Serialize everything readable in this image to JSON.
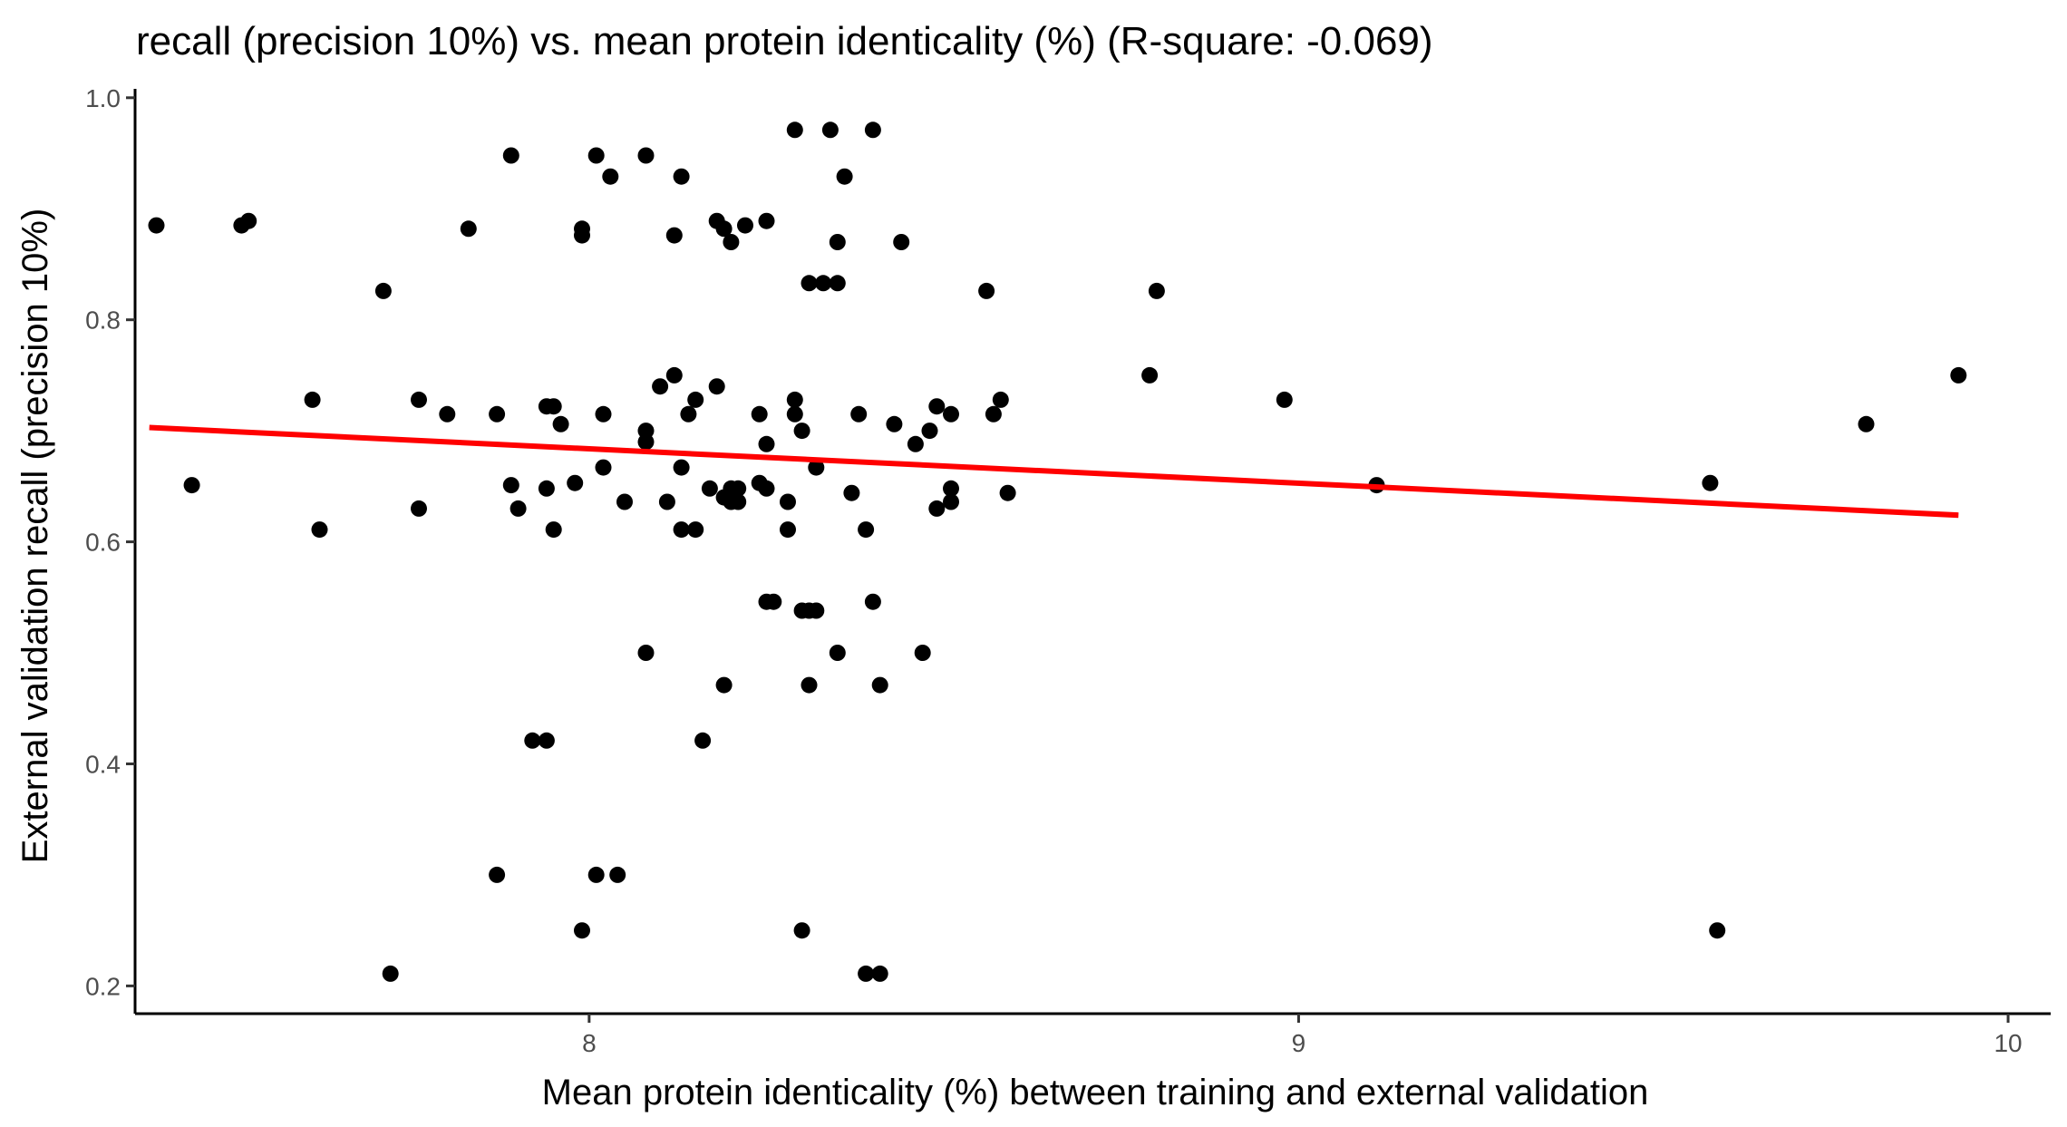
{
  "chart_data": {
    "type": "scatter",
    "title": "recall (precision 10%) vs. mean protein identicality (%) (R-square: -0.069)",
    "xlabel": "Mean protein identicality (%) between training and external validation",
    "ylabel": "External validation recall (precision 10%)",
    "xlim": [
      7.36,
      10.06
    ],
    "ylim": [
      0.175,
      1.008
    ],
    "xticks": [
      "8",
      "9",
      "10"
    ],
    "xtick_values": [
      8,
      9,
      10
    ],
    "yticks": [
      "0.2",
      "0.4",
      "0.6",
      "0.8",
      "1.0"
    ],
    "ytick_values": [
      0.2,
      0.4,
      0.6,
      0.8,
      1.0
    ],
    "grid": false,
    "legend": "none",
    "point_color": "#000000",
    "trend_color": "#ff0000",
    "trendline": {
      "x": [
        7.38,
        9.93
      ],
      "y": [
        0.703,
        0.624
      ]
    },
    "points": [
      {
        "x": 7.39,
        "y": 0.885
      },
      {
        "x": 7.44,
        "y": 0.651
      },
      {
        "x": 7.51,
        "y": 0.885
      },
      {
        "x": 7.52,
        "y": 0.889
      },
      {
        "x": 7.61,
        "y": 0.728
      },
      {
        "x": 7.62,
        "y": 0.611
      },
      {
        "x": 7.71,
        "y": 0.826
      },
      {
        "x": 7.72,
        "y": 0.211
      },
      {
        "x": 7.76,
        "y": 0.728
      },
      {
        "x": 7.76,
        "y": 0.63
      },
      {
        "x": 7.8,
        "y": 0.715
      },
      {
        "x": 7.83,
        "y": 0.882
      },
      {
        "x": 7.87,
        "y": 0.715
      },
      {
        "x": 7.87,
        "y": 0.3
      },
      {
        "x": 7.89,
        "y": 0.948
      },
      {
        "x": 7.89,
        "y": 0.651
      },
      {
        "x": 7.9,
        "y": 0.63
      },
      {
        "x": 7.92,
        "y": 0.421
      },
      {
        "x": 7.94,
        "y": 0.648
      },
      {
        "x": 7.94,
        "y": 0.421
      },
      {
        "x": 7.94,
        "y": 0.722
      },
      {
        "x": 7.95,
        "y": 0.611
      },
      {
        "x": 7.95,
        "y": 0.722
      },
      {
        "x": 7.96,
        "y": 0.706
      },
      {
        "x": 7.98,
        "y": 0.653
      },
      {
        "x": 7.99,
        "y": 0.876
      },
      {
        "x": 7.99,
        "y": 0.882
      },
      {
        "x": 7.99,
        "y": 0.25
      },
      {
        "x": 8.01,
        "y": 0.3
      },
      {
        "x": 8.01,
        "y": 0.948
      },
      {
        "x": 8.02,
        "y": 0.715
      },
      {
        "x": 8.02,
        "y": 0.667
      },
      {
        "x": 8.03,
        "y": 0.929
      },
      {
        "x": 8.04,
        "y": 0.3
      },
      {
        "x": 8.05,
        "y": 0.636
      },
      {
        "x": 8.08,
        "y": 0.948
      },
      {
        "x": 8.08,
        "y": 0.7
      },
      {
        "x": 8.08,
        "y": 0.69
      },
      {
        "x": 8.08,
        "y": 0.5
      },
      {
        "x": 8.1,
        "y": 0.74
      },
      {
        "x": 8.11,
        "y": 0.636
      },
      {
        "x": 8.12,
        "y": 0.75
      },
      {
        "x": 8.12,
        "y": 0.876
      },
      {
        "x": 8.13,
        "y": 0.929
      },
      {
        "x": 8.13,
        "y": 0.667
      },
      {
        "x": 8.13,
        "y": 0.611
      },
      {
        "x": 8.14,
        "y": 0.715
      },
      {
        "x": 8.15,
        "y": 0.728
      },
      {
        "x": 8.15,
        "y": 0.611
      },
      {
        "x": 8.16,
        "y": 0.421
      },
      {
        "x": 8.17,
        "y": 0.648
      },
      {
        "x": 8.18,
        "y": 0.74
      },
      {
        "x": 8.18,
        "y": 0.889
      },
      {
        "x": 8.19,
        "y": 0.882
      },
      {
        "x": 8.19,
        "y": 0.64
      },
      {
        "x": 8.19,
        "y": 0.471
      },
      {
        "x": 8.2,
        "y": 0.87
      },
      {
        "x": 8.2,
        "y": 0.648
      },
      {
        "x": 8.2,
        "y": 0.636
      },
      {
        "x": 8.21,
        "y": 0.636
      },
      {
        "x": 8.21,
        "y": 0.648
      },
      {
        "x": 8.22,
        "y": 0.885
      },
      {
        "x": 8.24,
        "y": 0.653
      },
      {
        "x": 8.24,
        "y": 0.715
      },
      {
        "x": 8.25,
        "y": 0.889
      },
      {
        "x": 8.25,
        "y": 0.688
      },
      {
        "x": 8.25,
        "y": 0.648
      },
      {
        "x": 8.25,
        "y": 0.546
      },
      {
        "x": 8.26,
        "y": 0.546
      },
      {
        "x": 8.28,
        "y": 0.636
      },
      {
        "x": 8.28,
        "y": 0.611
      },
      {
        "x": 8.29,
        "y": 0.971
      },
      {
        "x": 8.29,
        "y": 0.728
      },
      {
        "x": 8.29,
        "y": 0.715
      },
      {
        "x": 8.3,
        "y": 0.7
      },
      {
        "x": 8.3,
        "y": 0.538
      },
      {
        "x": 8.3,
        "y": 0.25
      },
      {
        "x": 8.31,
        "y": 0.833
      },
      {
        "x": 8.31,
        "y": 0.471
      },
      {
        "x": 8.31,
        "y": 0.538
      },
      {
        "x": 8.32,
        "y": 0.667
      },
      {
        "x": 8.32,
        "y": 0.538
      },
      {
        "x": 8.33,
        "y": 0.833
      },
      {
        "x": 8.34,
        "y": 0.971
      },
      {
        "x": 8.35,
        "y": 0.87
      },
      {
        "x": 8.35,
        "y": 0.833
      },
      {
        "x": 8.35,
        "y": 0.5
      },
      {
        "x": 8.36,
        "y": 0.929
      },
      {
        "x": 8.37,
        "y": 0.644
      },
      {
        "x": 8.38,
        "y": 0.715
      },
      {
        "x": 8.39,
        "y": 0.611
      },
      {
        "x": 8.39,
        "y": 0.211
      },
      {
        "x": 8.4,
        "y": 0.971
      },
      {
        "x": 8.4,
        "y": 0.546
      },
      {
        "x": 8.41,
        "y": 0.471
      },
      {
        "x": 8.41,
        "y": 0.211
      },
      {
        "x": 8.43,
        "y": 0.706
      },
      {
        "x": 8.44,
        "y": 0.87
      },
      {
        "x": 8.46,
        "y": 0.688
      },
      {
        "x": 8.47,
        "y": 0.5
      },
      {
        "x": 8.48,
        "y": 0.7
      },
      {
        "x": 8.49,
        "y": 0.722
      },
      {
        "x": 8.49,
        "y": 0.63
      },
      {
        "x": 8.51,
        "y": 0.715
      },
      {
        "x": 8.51,
        "y": 0.636
      },
      {
        "x": 8.51,
        "y": 0.648
      },
      {
        "x": 8.56,
        "y": 0.826
      },
      {
        "x": 8.57,
        "y": 0.715
      },
      {
        "x": 8.58,
        "y": 0.728
      },
      {
        "x": 8.59,
        "y": 0.644
      },
      {
        "x": 8.79,
        "y": 0.75
      },
      {
        "x": 8.8,
        "y": 0.826
      },
      {
        "x": 8.98,
        "y": 0.728
      },
      {
        "x": 9.11,
        "y": 0.651
      },
      {
        "x": 9.58,
        "y": 0.653
      },
      {
        "x": 9.59,
        "y": 0.25
      },
      {
        "x": 9.8,
        "y": 0.706
      },
      {
        "x": 9.93,
        "y": 0.75
      }
    ]
  }
}
